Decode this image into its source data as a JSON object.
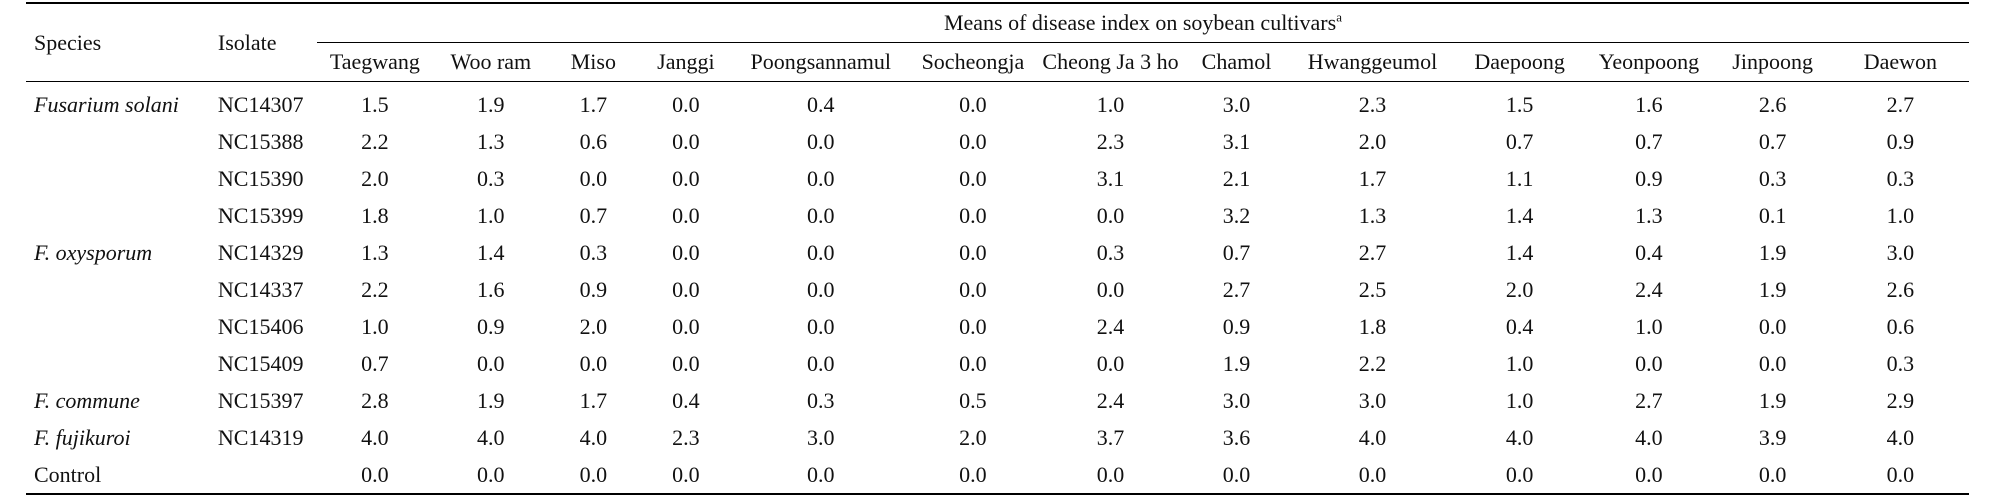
{
  "headers": {
    "species": "Species",
    "isolate": "Isolate",
    "group": "Means of disease index on soybean cultivars",
    "group_sup": "a",
    "cultivars": [
      "Taegwang",
      "Woo ram",
      "Miso",
      "Janggi",
      "Poongsannamul",
      "Socheongja",
      "Cheong Ja 3 ho",
      "Chamol",
      "Hwanggeumol",
      "Daepoong",
      "Yeonpoong",
      "Jinpoong",
      "Daewon"
    ]
  },
  "rows": [
    {
      "species": "Fusarium solani",
      "isolate": "NC14307",
      "values": [
        "1.5",
        "1.9",
        "1.7",
        "0.0",
        "0.4",
        "0.0",
        "1.0",
        "3.0",
        "2.3",
        "1.5",
        "1.6",
        "2.6",
        "2.7"
      ]
    },
    {
      "species": "",
      "isolate": "NC15388",
      "values": [
        "2.2",
        "1.3",
        "0.6",
        "0.0",
        "0.0",
        "0.0",
        "2.3",
        "3.1",
        "2.0",
        "0.7",
        "0.7",
        "0.7",
        "0.9"
      ]
    },
    {
      "species": "",
      "isolate": "NC15390",
      "values": [
        "2.0",
        "0.3",
        "0.0",
        "0.0",
        "0.0",
        "0.0",
        "3.1",
        "2.1",
        "1.7",
        "1.1",
        "0.9",
        "0.3",
        "0.3"
      ]
    },
    {
      "species": "",
      "isolate": "NC15399",
      "values": [
        "1.8",
        "1.0",
        "0.7",
        "0.0",
        "0.0",
        "0.0",
        "0.0",
        "3.2",
        "1.3",
        "1.4",
        "1.3",
        "0.1",
        "1.0"
      ]
    },
    {
      "species": "F. oxysporum",
      "isolate": "NC14329",
      "values": [
        "1.3",
        "1.4",
        "0.3",
        "0.0",
        "0.0",
        "0.0",
        "0.3",
        "0.7",
        "2.7",
        "1.4",
        "0.4",
        "1.9",
        "3.0"
      ]
    },
    {
      "species": "",
      "isolate": "NC14337",
      "values": [
        "2.2",
        "1.6",
        "0.9",
        "0.0",
        "0.0",
        "0.0",
        "0.0",
        "2.7",
        "2.5",
        "2.0",
        "2.4",
        "1.9",
        "2.6"
      ]
    },
    {
      "species": "",
      "isolate": "NC15406",
      "values": [
        "1.0",
        "0.9",
        "2.0",
        "0.0",
        "0.0",
        "0.0",
        "2.4",
        "0.9",
        "1.8",
        "0.4",
        "1.0",
        "0.0",
        "0.6"
      ]
    },
    {
      "species": "",
      "isolate": "NC15409",
      "values": [
        "0.7",
        "0.0",
        "0.0",
        "0.0",
        "0.0",
        "0.0",
        "0.0",
        "1.9",
        "2.2",
        "1.0",
        "0.0",
        "0.0",
        "0.3"
      ]
    },
    {
      "species": "F. commune",
      "isolate": "NC15397",
      "values": [
        "2.8",
        "1.9",
        "1.7",
        "0.4",
        "0.3",
        "0.5",
        "2.4",
        "3.0",
        "3.0",
        "1.0",
        "2.7",
        "1.9",
        "2.9"
      ]
    },
    {
      "species": "F. fujikuroi",
      "isolate": "NC14319",
      "values": [
        "4.0",
        "4.0",
        "4.0",
        "2.3",
        "3.0",
        "2.0",
        "3.7",
        "3.6",
        "4.0",
        "4.0",
        "4.0",
        "3.9",
        "4.0"
      ]
    },
    {
      "species": "Control",
      "isolate": "",
      "values": [
        "0.0",
        "0.0",
        "0.0",
        "0.0",
        "0.0",
        "0.0",
        "0.0",
        "0.0",
        "0.0",
        "0.0",
        "0.0",
        "0.0",
        "0.0"
      ]
    }
  ]
}
